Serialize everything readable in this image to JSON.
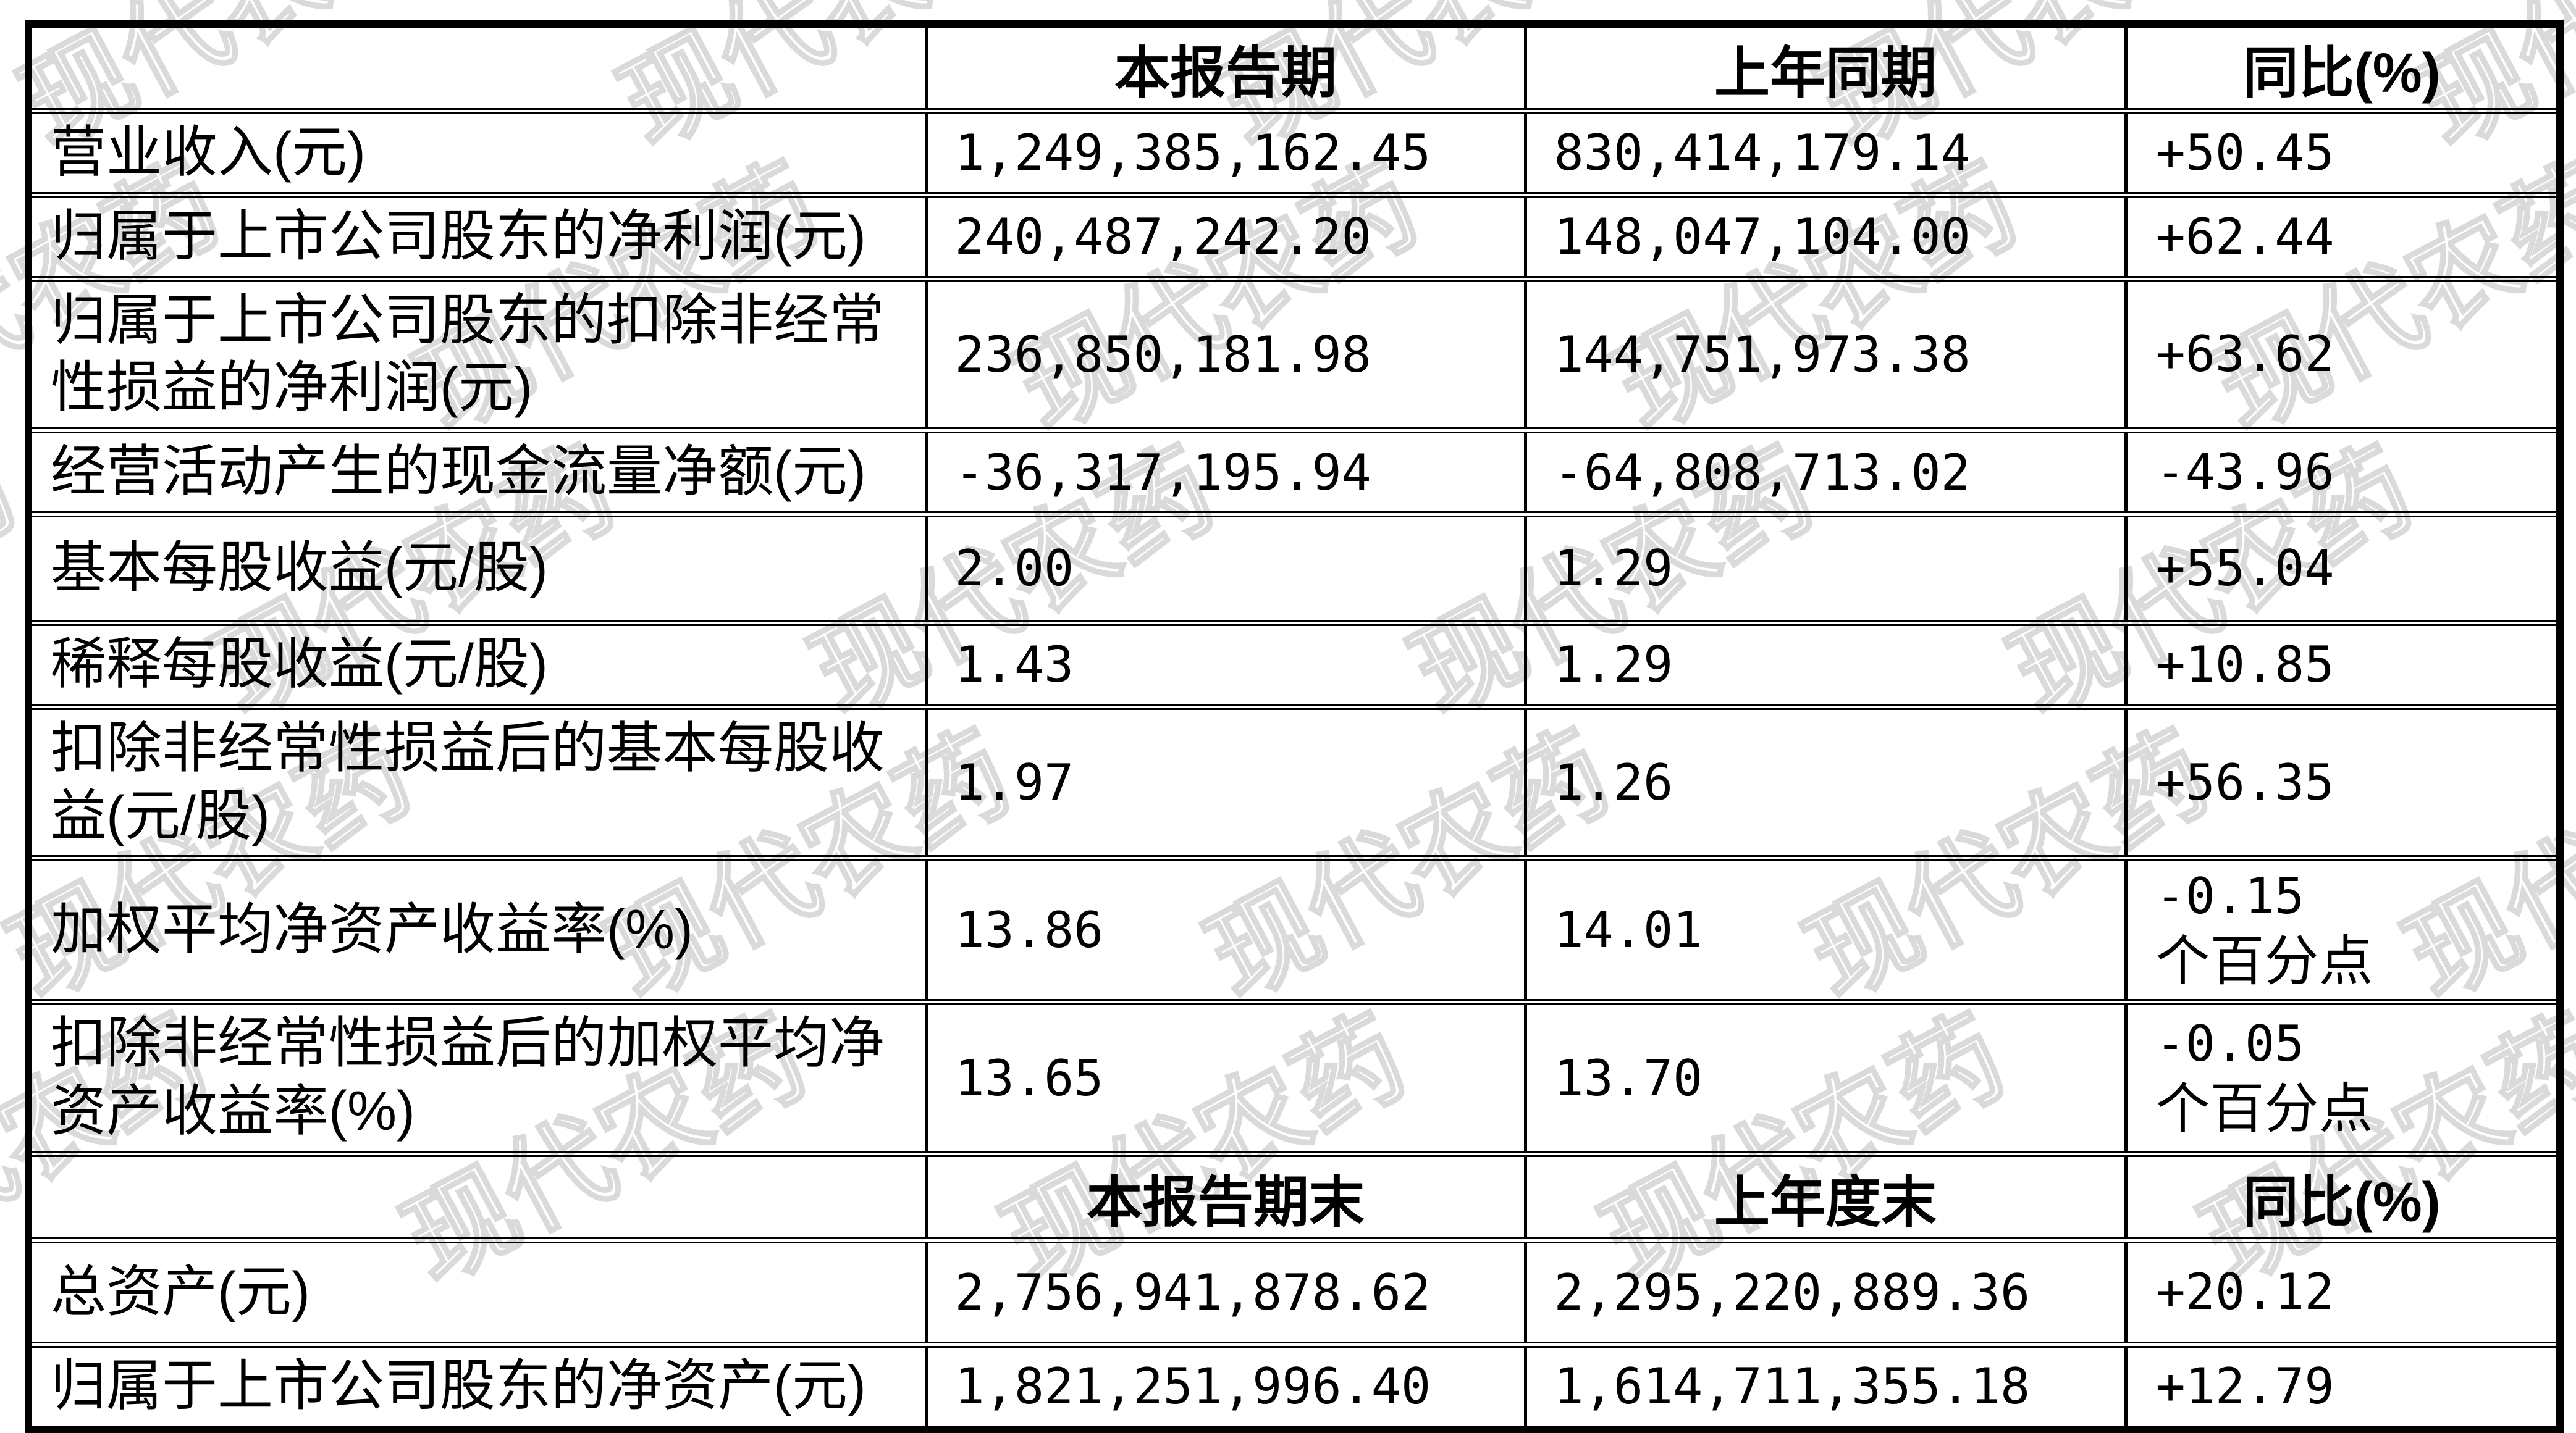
{
  "watermark": {
    "text": "现代农药"
  },
  "table": {
    "header1": {
      "c0": "",
      "c1": "本报告期",
      "c2": "上年同期",
      "c3": "同比(%)"
    },
    "header2": {
      "c0": "",
      "c1": "本报告期末",
      "c2": "上年度末",
      "c3": "同比(%)"
    },
    "rows": [
      {
        "label": "营业收入(元)",
        "current": "1,249,385,162.45",
        "prior": "830,414,179.14",
        "yoy": "+50.45"
      },
      {
        "label": "归属于上市公司股东的净利润(元)",
        "current": "240,487,242.20",
        "prior": "148,047,104.00",
        "yoy": "+62.44"
      },
      {
        "label": "归属于上市公司股东的扣除非经常性损益的净利润(元)",
        "current": "236,850,181.98",
        "prior": "144,751,973.38",
        "yoy": "+63.62"
      },
      {
        "label": "经营活动产生的现金流量净额(元)",
        "current": "-36,317,195.94",
        "prior": "-64,808,713.02",
        "yoy": "-43.96"
      },
      {
        "label": "基本每股收益(元/股)",
        "current": "2.00",
        "prior": "1.29",
        "yoy": "+55.04"
      },
      {
        "label": "稀释每股收益(元/股)",
        "current": "1.43",
        "prior": "1.29",
        "yoy": "+10.85"
      },
      {
        "label": "扣除非经常性损益后的基本每股收益(元/股)",
        "current": "1.97",
        "prior": "1.26",
        "yoy": "+56.35"
      },
      {
        "label": "加权平均净资产收益率(%)",
        "current": "13.86",
        "prior": "14.01",
        "yoy": "-0.15",
        "yoy_unit": "个百分点"
      },
      {
        "label": "扣除非经常性损益后的加权平均净资产收益率(%)",
        "current": "13.65",
        "prior": "13.70",
        "yoy": "-0.05",
        "yoy_unit": "个百分点"
      },
      {
        "label": "总资产(元)",
        "current": "2,756,941,878.62",
        "prior": "2,295,220,889.36",
        "yoy": "+20.12"
      },
      {
        "label": "归属于上市公司股东的净资产(元)",
        "current": "1,821,251,996.40",
        "prior": "1,614,711,355.18",
        "yoy": "+12.79"
      }
    ]
  }
}
